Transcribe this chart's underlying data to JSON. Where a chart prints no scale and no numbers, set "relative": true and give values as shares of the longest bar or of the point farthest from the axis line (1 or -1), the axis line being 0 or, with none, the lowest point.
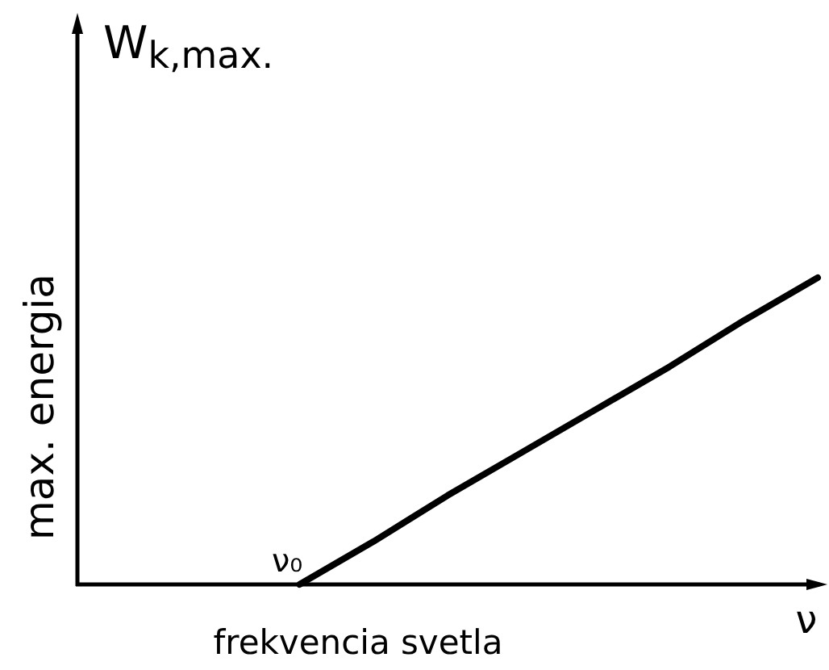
{
  "chart_data": {
    "type": "line",
    "relative": true,
    "xlabel": "frekvencia svetla",
    "ylabel": "max. energia",
    "annotations": [
      "W$_{k,max.}$",
      "ν",
      "ν₀"
    ],
    "categories": [
      null,
      null,
      null,
      null,
      null,
      null,
      null,
      null,
      null,
      null,
      null
    ],
    "series": [
      {
        "color": "#000000",
        "values": [
          null,
          null,
          null,
          0,
          0.14,
          0.29,
          0.43,
          0.57,
          0.71,
          0.86,
          1
        ]
      }
    ],
    "line_style": "solid"
  }
}
